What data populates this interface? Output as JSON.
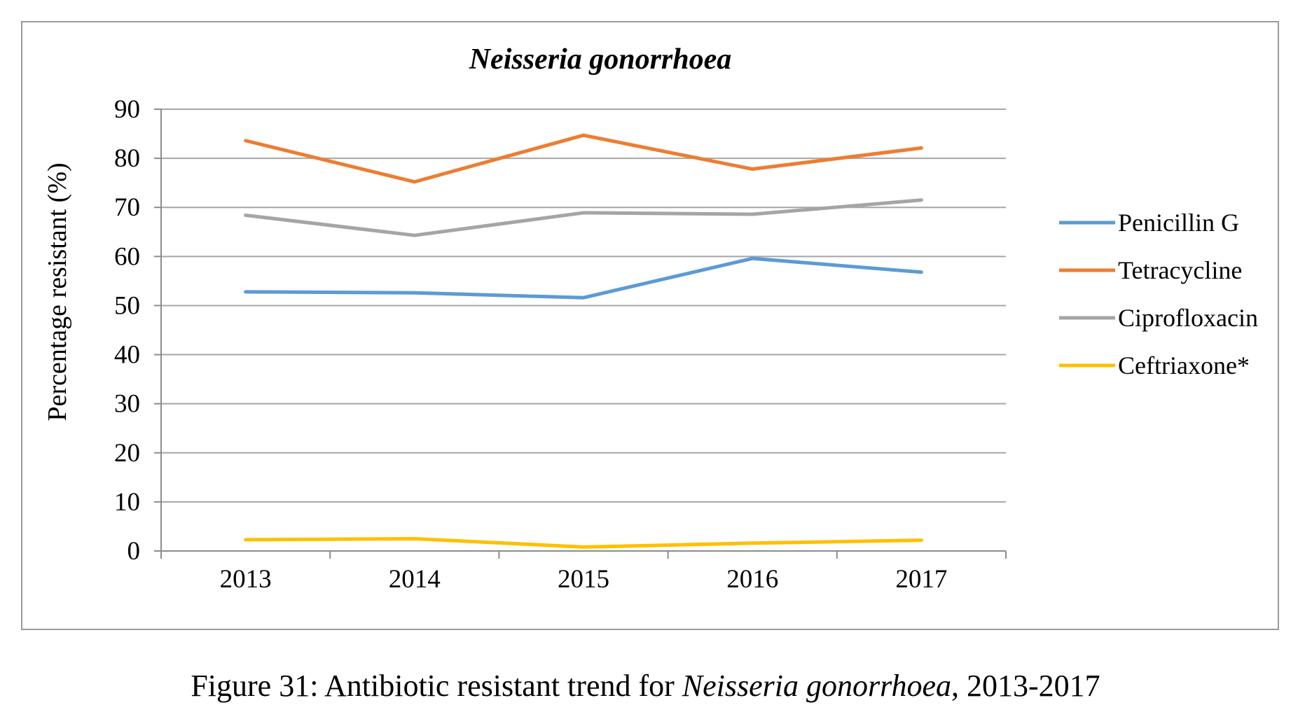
{
  "chart_data": {
    "type": "line",
    "title": "Neisseria gonorrhoea",
    "xlabel": "",
    "ylabel": "Percentage resistant (%)",
    "categories": [
      "2013",
      "2014",
      "2015",
      "2016",
      "2017"
    ],
    "ylim": [
      0,
      90
    ],
    "yticks": [
      0,
      10,
      20,
      30,
      40,
      50,
      60,
      70,
      80,
      90
    ],
    "grid": true,
    "legend_position": "right",
    "series": [
      {
        "name": "Penicillin G",
        "color": "#5B9BD5",
        "values": [
          52.8,
          52.6,
          51.6,
          59.6,
          56.8
        ]
      },
      {
        "name": "Tetracycline",
        "color": "#ED7D31",
        "values": [
          83.6,
          75.2,
          84.7,
          77.8,
          82.1
        ]
      },
      {
        "name": "Ciprofloxacin",
        "color": "#A5A5A5",
        "values": [
          68.4,
          64.3,
          68.9,
          68.6,
          71.5
        ]
      },
      {
        "name": "Ceftriaxone*",
        "color": "#FFC000",
        "values": [
          2.3,
          2.5,
          0.8,
          1.6,
          2.2
        ]
      }
    ]
  },
  "caption": {
    "prefix": "Figure 31: Antibiotic resistant trend for ",
    "organism": "Neisseria gonorrhoea",
    "suffix": ", 2013-2017"
  }
}
